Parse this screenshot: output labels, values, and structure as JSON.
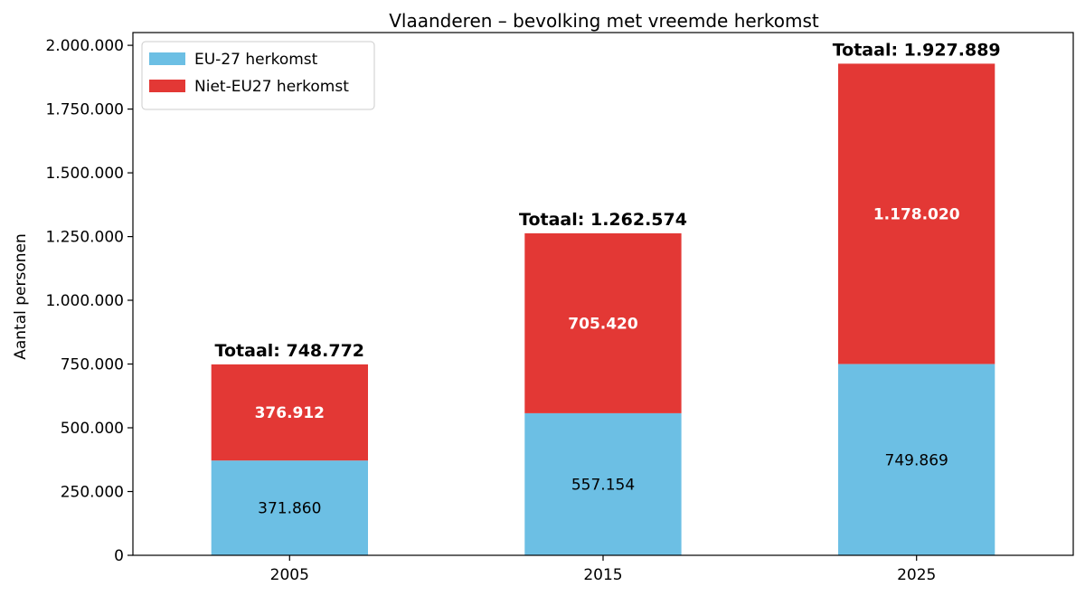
{
  "chart_data": {
    "type": "bar",
    "stacked": true,
    "title": "Vlaanderen – bevolking met vreemde herkomst",
    "xlabel": "",
    "ylabel": "Aantal personen",
    "categories": [
      "2005",
      "2015",
      "2025"
    ],
    "series": [
      {
        "name": "EU-27 herkomst",
        "color": "#6cbfe4",
        "values": [
          371860,
          557154,
          749869
        ],
        "value_labels": [
          "371.860",
          "557.154",
          "749.869"
        ],
        "label_style": "dark"
      },
      {
        "name": "Niet-EU27 herkomst",
        "color": "#e33835",
        "values": [
          376912,
          705420,
          1178020
        ],
        "value_labels": [
          "376.912",
          "705.420",
          "1.178.020"
        ],
        "label_style": "light"
      }
    ],
    "totals": [
      748772,
      1262574,
      1927889
    ],
    "total_labels": [
      "Totaal: 748.772",
      "Totaal: 1.262.574",
      "Totaal: 1.927.889"
    ],
    "ylim": [
      0,
      2000000
    ],
    "yticks": [
      0,
      250000,
      500000,
      750000,
      1000000,
      1250000,
      1500000,
      1750000,
      2000000
    ],
    "ytick_labels": [
      "0",
      "250.000",
      "500.000",
      "750.000",
      "1.000.000",
      "1.250.000",
      "1.500.000",
      "1.750.000",
      "2.000.000"
    ],
    "grid": false,
    "legend_position": "top-left"
  }
}
